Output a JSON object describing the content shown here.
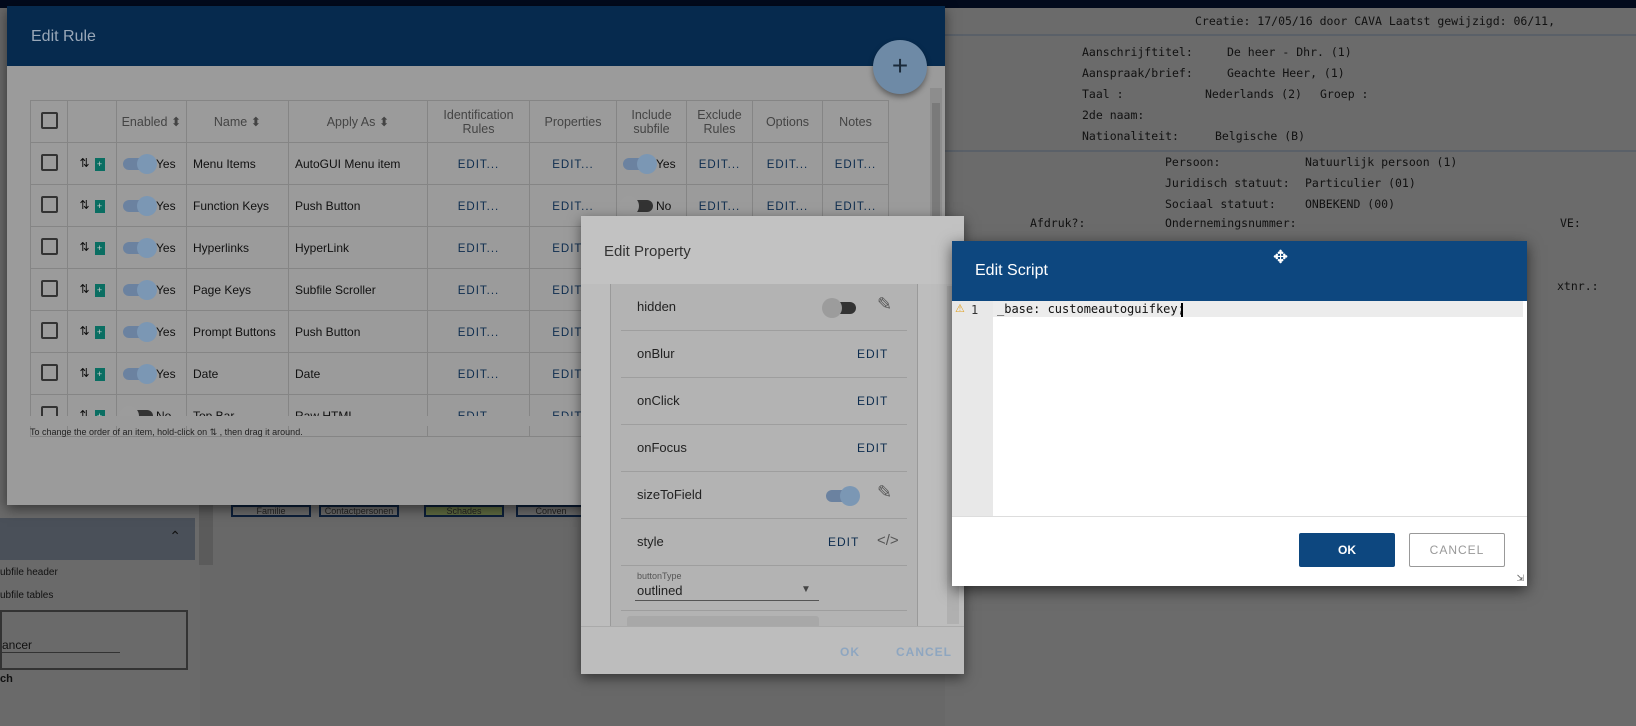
{
  "background": {
    "meta": "Creatie: 17/05/16 door CAVA  Laatst gewijzigd: 06/11,",
    "fields": [
      {
        "label": "Aanschrijftitel:",
        "value": "De heer - Dhr. (1)"
      },
      {
        "label": "Aanspraak/brief:",
        "value": "Geachte Heer, (1)"
      },
      {
        "label": "Taal  :",
        "value": "Nederlands (2)"
      },
      {
        "label": "Groep :",
        "value": ""
      },
      {
        "label": "2de naam:",
        "value": ""
      },
      {
        "label": "Nationaliteit:",
        "value": "Belgische (B)"
      },
      {
        "label": "Persoon:",
        "value": "Natuurlijk persoon (1)"
      },
      {
        "label": "Juridisch statuut:",
        "value": "Particulier (01)"
      },
      {
        "label": "Sociaal statuut:",
        "value": "ONBEKEND (00)"
      },
      {
        "label": "Afdruk?:",
        "value": ""
      },
      {
        "label": "Ondernemingsnummer:",
        "value": ""
      },
      {
        "label": "VE:",
        "value": ""
      },
      {
        "label": "xtnr.:",
        "value": ""
      }
    ],
    "tabs": [
      "Familie",
      "Contactpersonen",
      "Schades",
      "Conven"
    ],
    "sidebar": {
      "items": [
        "ubfile header",
        "ubfile tables"
      ],
      "select_value": "ancer",
      "section_label": "ch"
    }
  },
  "edit_rule": {
    "title": "Edit Rule",
    "add_label": "+",
    "columns": [
      "",
      "",
      "Enabled",
      "Name",
      "Apply As",
      "Identification Rules",
      "Properties",
      "Include subfile",
      "Exclude Rules",
      "Options",
      "Notes"
    ],
    "edit_label": "EDIT...",
    "rows": [
      {
        "enabled": "Yes",
        "name": "Menu Items",
        "apply_as": "AutoGUI Menu item",
        "include": "Yes"
      },
      {
        "enabled": "Yes",
        "name": "Function Keys",
        "apply_as": "Push Button",
        "include": "No"
      },
      {
        "enabled": "Yes",
        "name": "Hyperlinks",
        "apply_as": "HyperLink",
        "include": ""
      },
      {
        "enabled": "Yes",
        "name": "Page Keys",
        "apply_as": "Subfile Scroller",
        "include": ""
      },
      {
        "enabled": "Yes",
        "name": "Prompt Buttons",
        "apply_as": "Push Button",
        "include": ""
      },
      {
        "enabled": "Yes",
        "name": "Date",
        "apply_as": "Date",
        "include": ""
      },
      {
        "enabled": "No",
        "name": "Top Bar",
        "apply_as": "Raw HTML",
        "include": ""
      }
    ],
    "footer_hint": "To change the order of an item, hold-click on ⇅ , then drag it around."
  },
  "edit_property": {
    "title": "Edit Property",
    "rows": [
      {
        "name": "hidden",
        "type": "toggle",
        "on": false
      },
      {
        "name": "onBlur",
        "type": "edit"
      },
      {
        "name": "onClick",
        "type": "edit"
      },
      {
        "name": "onFocus",
        "type": "edit"
      },
      {
        "name": "sizeToField",
        "type": "toggle",
        "on": true
      },
      {
        "name": "style",
        "type": "edit-code"
      }
    ],
    "edit_label": "EDIT",
    "button_type": {
      "label": "buttonType",
      "value": "outlined"
    },
    "ok_label": "OK",
    "cancel_label": "CANCEL"
  },
  "edit_script": {
    "title": "Edit Script",
    "line_number": "1",
    "code": "_base: customeautoguifkey;",
    "ok_label": "OK",
    "cancel_label": "CANCEL"
  }
}
